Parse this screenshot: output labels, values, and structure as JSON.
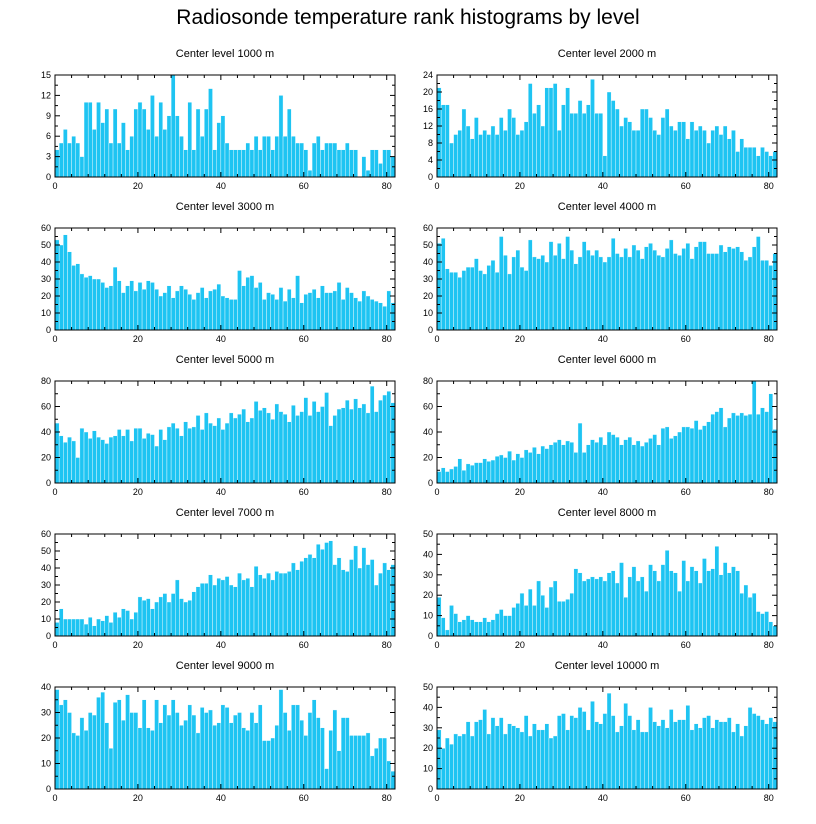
{
  "title": "Radiosonde temperature rank histograms by level",
  "colors": {
    "bar": "#1ec4f2",
    "axis": "#000000",
    "background": "#ffffff"
  },
  "chart_data": [
    {
      "type": "bar",
      "title": "Center level 1000 m",
      "xlim": [
        0,
        82
      ],
      "ylim": [
        0,
        15
      ],
      "xticks": [
        0,
        20,
        40,
        60,
        80
      ],
      "yticks": [
        0,
        3,
        6,
        9,
        12,
        15
      ],
      "values": [
        4,
        5,
        7,
        5,
        6,
        5,
        3,
        11,
        11,
        7,
        11,
        8,
        10,
        5,
        10,
        5,
        8,
        4,
        6,
        10,
        11,
        10,
        7,
        12,
        6,
        11,
        7,
        9,
        15,
        9,
        6,
        4,
        11,
        4,
        10,
        6,
        10,
        13,
        4,
        8,
        9,
        5,
        4,
        4,
        4,
        4,
        5,
        4,
        6,
        4,
        6,
        6,
        4,
        6,
        12,
        6,
        10,
        6,
        5,
        5,
        4,
        1,
        5,
        6,
        4,
        5,
        5,
        5,
        4,
        4,
        5,
        4,
        4,
        0,
        3,
        1,
        4,
        4,
        2,
        4,
        4,
        3
      ]
    },
    {
      "type": "bar",
      "title": "Center level 2000 m",
      "xlim": [
        0,
        82
      ],
      "ylim": [
        0,
        24
      ],
      "xticks": [
        0,
        20,
        40,
        60,
        80
      ],
      "yticks": [
        0,
        4,
        8,
        12,
        16,
        20,
        24
      ],
      "values": [
        21,
        17,
        17,
        8,
        10,
        11,
        16,
        12,
        9,
        14,
        10,
        11,
        10,
        12,
        10,
        14,
        11,
        16,
        14,
        10,
        11,
        13,
        22,
        15,
        17,
        12,
        21,
        21,
        22,
        11,
        17,
        21,
        15,
        15,
        18,
        15,
        17,
        23,
        15,
        15,
        5,
        20,
        18,
        16,
        12,
        14,
        13,
        11,
        11,
        16,
        16,
        14,
        11,
        10,
        14,
        16,
        12,
        11,
        13,
        13,
        9,
        13,
        11,
        12,
        11,
        8,
        11,
        12,
        10,
        12,
        9,
        11,
        6,
        9,
        7,
        7,
        7,
        5,
        7,
        6,
        5,
        6
      ]
    },
    {
      "type": "bar",
      "title": "Center level 3000 m",
      "xlim": [
        0,
        82
      ],
      "ylim": [
        0,
        60
      ],
      "xticks": [
        0,
        20,
        40,
        60,
        80
      ],
      "yticks": [
        0,
        10,
        20,
        30,
        40,
        50,
        60
      ],
      "values": [
        53,
        50,
        56,
        46,
        38,
        39,
        33,
        31,
        32,
        30,
        30,
        28,
        25,
        26,
        37,
        29,
        22,
        26,
        29,
        23,
        28,
        24,
        29,
        28,
        24,
        20,
        22,
        26,
        19,
        23,
        26,
        24,
        21,
        18,
        22,
        25,
        19,
        23,
        24,
        27,
        20,
        19,
        18,
        18,
        35,
        26,
        31,
        32,
        25,
        28,
        18,
        22,
        21,
        18,
        25,
        17,
        24,
        19,
        32,
        16,
        21,
        22,
        24,
        19,
        26,
        22,
        22,
        23,
        28,
        18,
        25,
        22,
        19,
        17,
        23,
        20,
        18,
        17,
        16,
        14,
        23,
        16
      ]
    },
    {
      "type": "bar",
      "title": "Center level 4000 m",
      "xlim": [
        0,
        82
      ],
      "ylim": [
        0,
        60
      ],
      "xticks": [
        0,
        20,
        40,
        60,
        80
      ],
      "yticks": [
        0,
        10,
        20,
        30,
        40,
        50,
        60
      ],
      "values": [
        51,
        54,
        36,
        34,
        34,
        31,
        35,
        37,
        37,
        42,
        35,
        33,
        38,
        41,
        34,
        55,
        44,
        33,
        43,
        47,
        37,
        35,
        53,
        43,
        42,
        44,
        40,
        52,
        44,
        51,
        42,
        55,
        47,
        39,
        43,
        52,
        47,
        44,
        47,
        43,
        40,
        43,
        54,
        45,
        43,
        48,
        43,
        50,
        47,
        42,
        49,
        51,
        47,
        44,
        43,
        48,
        53,
        45,
        44,
        48,
        51,
        42,
        49,
        52,
        52,
        45,
        45,
        45,
        50,
        46,
        49,
        48,
        49,
        46,
        41,
        43,
        49,
        55,
        41,
        41,
        38,
        45
      ]
    },
    {
      "type": "bar",
      "title": "Center level 5000 m",
      "xlim": [
        0,
        82
      ],
      "ylim": [
        0,
        80
      ],
      "xticks": [
        0,
        20,
        40,
        60,
        80
      ],
      "yticks": [
        0,
        20,
        40,
        60,
        80
      ],
      "values": [
        47,
        37,
        32,
        36,
        33,
        20,
        43,
        40,
        35,
        41,
        36,
        34,
        31,
        36,
        37,
        42,
        37,
        42,
        33,
        43,
        43,
        35,
        39,
        38,
        29,
        42,
        34,
        44,
        47,
        43,
        37,
        48,
        43,
        44,
        53,
        42,
        55,
        47,
        45,
        51,
        42,
        47,
        55,
        51,
        54,
        58,
        48,
        51,
        64,
        57,
        59,
        55,
        50,
        62,
        56,
        54,
        48,
        61,
        53,
        56,
        67,
        53,
        64,
        56,
        60,
        71,
        45,
        53,
        58,
        59,
        65,
        58,
        66,
        59,
        62,
        55,
        76,
        56,
        65,
        69,
        72,
        63
      ]
    },
    {
      "type": "bar",
      "title": "Center level 6000 m",
      "xlim": [
        0,
        82
      ],
      "ylim": [
        0,
        80
      ],
      "xticks": [
        0,
        20,
        40,
        60,
        80
      ],
      "yticks": [
        0,
        20,
        40,
        60,
        80
      ],
      "values": [
        9,
        12,
        9,
        11,
        13,
        19,
        10,
        15,
        14,
        16,
        16,
        19,
        17,
        18,
        21,
        22,
        20,
        25,
        18,
        23,
        20,
        26,
        24,
        28,
        23,
        29,
        27,
        30,
        32,
        34,
        30,
        33,
        32,
        24,
        47,
        24,
        30,
        34,
        32,
        36,
        30,
        40,
        38,
        36,
        30,
        34,
        36,
        30,
        33,
        29,
        32,
        35,
        38,
        30,
        43,
        44,
        35,
        37,
        40,
        44,
        44,
        43,
        49,
        42,
        45,
        48,
        54,
        56,
        59,
        44,
        51,
        55,
        53,
        55,
        53,
        54,
        82,
        54,
        59,
        56,
        70,
        42
      ]
    },
    {
      "type": "bar",
      "title": "Center level 7000 m",
      "xlim": [
        0,
        82
      ],
      "ylim": [
        0,
        60
      ],
      "xticks": [
        0,
        20,
        40,
        60,
        80
      ],
      "yticks": [
        0,
        10,
        20,
        30,
        40,
        50,
        60
      ],
      "values": [
        8,
        16,
        10,
        10,
        10,
        10,
        10,
        7,
        11,
        6,
        10,
        9,
        12,
        8,
        14,
        11,
        16,
        15,
        10,
        14,
        23,
        21,
        22,
        16,
        20,
        23,
        25,
        20,
        25,
        33,
        22,
        20,
        21,
        26,
        29,
        31,
        31,
        36,
        30,
        34,
        33,
        35,
        30,
        29,
        37,
        33,
        34,
        29,
        41,
        36,
        34,
        37,
        33,
        38,
        37,
        37,
        38,
        43,
        39,
        44,
        46,
        48,
        46,
        54,
        51,
        55,
        56,
        42,
        46,
        39,
        38,
        45,
        53,
        40,
        52,
        42,
        45,
        30,
        37,
        43,
        39,
        42
      ]
    },
    {
      "type": "bar",
      "title": "Center level 8000 m",
      "xlim": [
        0,
        82
      ],
      "ylim": [
        0,
        50
      ],
      "xticks": [
        0,
        20,
        40,
        60,
        80
      ],
      "yticks": [
        0,
        10,
        20,
        30,
        40,
        50
      ],
      "values": [
        19,
        9,
        3,
        15,
        11,
        7,
        8,
        10,
        8,
        7,
        7,
        9,
        7,
        8,
        11,
        13,
        10,
        10,
        14,
        16,
        21,
        15,
        23,
        15,
        27,
        20,
        14,
        24,
        27,
        17,
        17,
        18,
        21,
        33,
        31,
        27,
        28,
        29,
        28,
        29,
        27,
        31,
        32,
        26,
        36,
        19,
        29,
        34,
        27,
        29,
        22,
        35,
        32,
        27,
        35,
        42,
        32,
        31,
        22,
        37,
        27,
        34,
        32,
        26,
        38,
        32,
        33,
        44,
        30,
        36,
        31,
        34,
        32,
        21,
        25,
        19,
        21,
        12,
        11,
        12,
        7,
        5
      ]
    },
    {
      "type": "bar",
      "title": "Center level 9000 m",
      "xlim": [
        0,
        82
      ],
      "ylim": [
        0,
        40
      ],
      "xticks": [
        0,
        20,
        40,
        60,
        80
      ],
      "yticks": [
        0,
        10,
        20,
        30,
        40
      ],
      "values": [
        39,
        33,
        35,
        30,
        22,
        21,
        28,
        23,
        30,
        29,
        36,
        38,
        26,
        16,
        34,
        35,
        27,
        37,
        30,
        30,
        24,
        35,
        24,
        23,
        35,
        26,
        33,
        29,
        35,
        30,
        25,
        27,
        33,
        29,
        22,
        32,
        30,
        31,
        25,
        26,
        33,
        32,
        26,
        29,
        30,
        24,
        23,
        30,
        26,
        33,
        19,
        19,
        20,
        25,
        39,
        30,
        23,
        33,
        33,
        27,
        21,
        30,
        35,
        28,
        24,
        8,
        23,
        31,
        15,
        28,
        28,
        21,
        21,
        21,
        21,
        22,
        13,
        16,
        20,
        20,
        11,
        7
      ]
    },
    {
      "type": "bar",
      "title": "Center level 10000 m",
      "xlim": [
        0,
        82
      ],
      "ylim": [
        0,
        50
      ],
      "xticks": [
        0,
        20,
        40,
        60,
        80
      ],
      "yticks": [
        0,
        10,
        20,
        30,
        40,
        50
      ],
      "values": [
        29,
        20,
        25,
        22,
        27,
        26,
        27,
        33,
        26,
        33,
        34,
        39,
        27,
        35,
        31,
        35,
        27,
        32,
        31,
        30,
        28,
        36,
        26,
        32,
        29,
        29,
        32,
        25,
        26,
        36,
        37,
        29,
        36,
        35,
        40,
        38,
        29,
        43,
        33,
        32,
        37,
        47,
        36,
        28,
        31,
        42,
        36,
        29,
        34,
        28,
        28,
        40,
        33,
        31,
        34,
        30,
        39,
        33,
        34,
        34,
        41,
        29,
        32,
        30,
        35,
        36,
        30,
        34,
        33,
        33,
        35,
        28,
        32,
        26,
        31,
        40,
        37,
        36,
        34,
        32,
        35,
        33
      ]
    }
  ]
}
